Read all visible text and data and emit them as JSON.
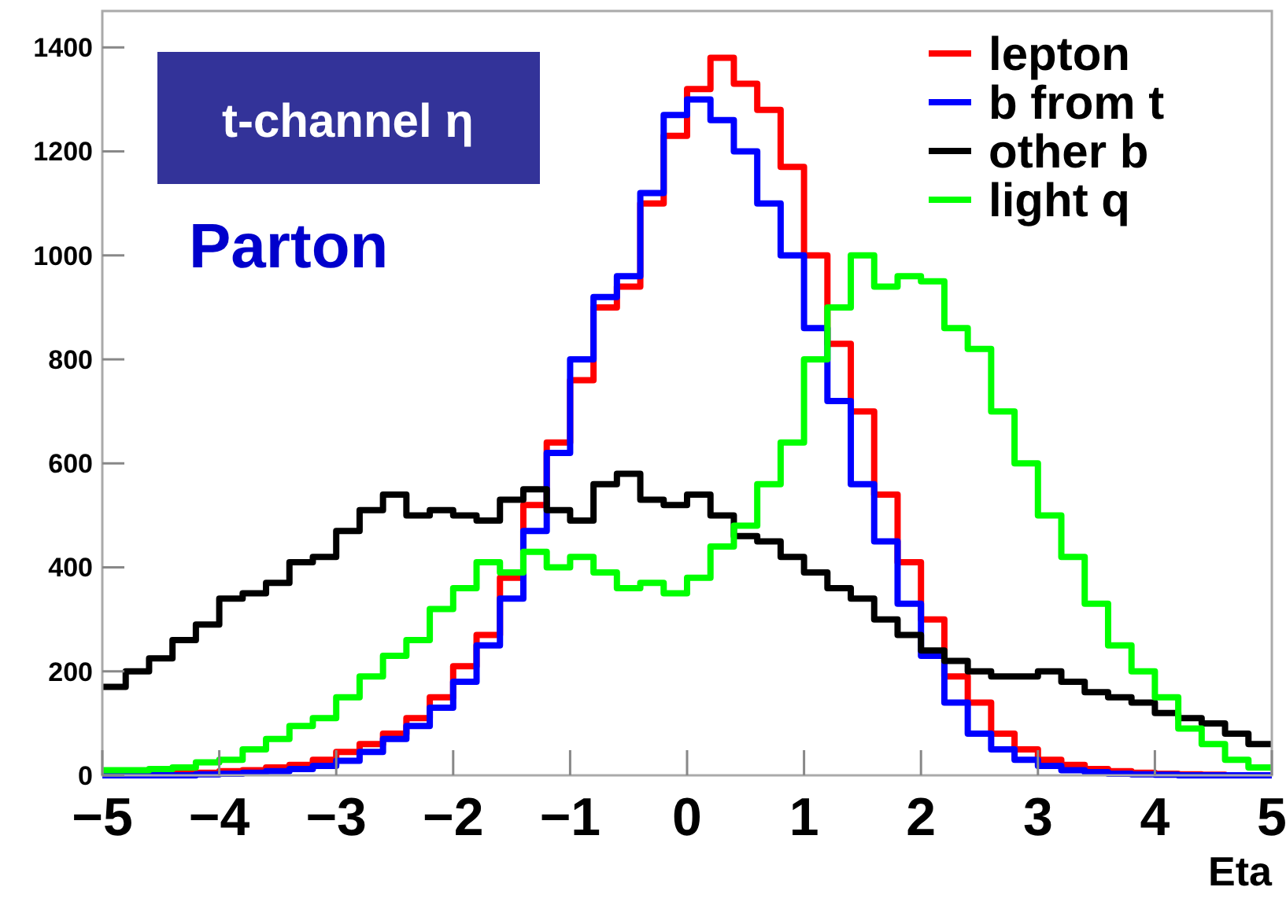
{
  "chart_data": {
    "type": "histogram",
    "title": "t-channel η",
    "subtitle": "Parton",
    "xlabel": "Eta",
    "bins": [
      -5,
      -4.8,
      -4.6,
      -4.4,
      -4.2,
      -4,
      -3.8,
      -3.6,
      -3.4,
      -3.2,
      -3,
      -2.8,
      -2.6,
      -2.4,
      -2.2,
      -2,
      -1.8,
      -1.6,
      -1.4,
      -1.2,
      -1,
      -0.8,
      -0.6,
      -0.4,
      -0.2,
      0,
      0.2,
      0.4,
      0.6,
      0.8,
      1,
      1.2,
      1.4,
      1.6,
      1.8,
      2,
      2.2,
      2.4,
      2.6,
      2.8,
      3,
      3.2,
      3.4,
      3.6,
      3.8,
      4,
      4.2,
      4.4,
      4.6,
      4.8,
      5
    ],
    "series": [
      {
        "name": "lepton",
        "color": "#ff0000",
        "values": [
          0,
          0,
          2,
          3,
          5,
          8,
          10,
          15,
          20,
          30,
          45,
          60,
          80,
          110,
          150,
          210,
          270,
          380,
          520,
          640,
          760,
          900,
          940,
          1100,
          1230,
          1320,
          1380,
          1330,
          1280,
          1170,
          1000,
          830,
          700,
          540,
          410,
          300,
          190,
          140,
          80,
          50,
          30,
          20,
          12,
          8,
          5,
          3,
          2,
          1,
          0,
          0
        ]
      },
      {
        "name": "b from t",
        "color": "#0000ff",
        "values": [
          0,
          0,
          0,
          0,
          2,
          3,
          5,
          8,
          12,
          18,
          28,
          45,
          70,
          95,
          130,
          180,
          250,
          340,
          470,
          620,
          800,
          920,
          960,
          1120,
          1270,
          1300,
          1260,
          1200,
          1100,
          1000,
          860,
          720,
          560,
          450,
          330,
          230,
          140,
          80,
          50,
          30,
          18,
          10,
          6,
          3,
          2,
          1,
          0,
          0,
          0,
          0
        ]
      },
      {
        "name": "other b",
        "color": "#000000",
        "values": [
          170,
          200,
          225,
          260,
          290,
          340,
          350,
          370,
          410,
          420,
          470,
          510,
          540,
          500,
          510,
          500,
          490,
          530,
          550,
          510,
          490,
          560,
          580,
          530,
          520,
          540,
          500,
          460,
          450,
          420,
          390,
          360,
          340,
          300,
          270,
          240,
          220,
          200,
          190,
          190,
          200,
          180,
          160,
          150,
          140,
          120,
          110,
          100,
          80,
          60
        ]
      },
      {
        "name": "light q",
        "color": "#00ff00",
        "values": [
          10,
          10,
          12,
          15,
          25,
          30,
          50,
          70,
          95,
          110,
          150,
          190,
          230,
          260,
          320,
          360,
          410,
          390,
          430,
          400,
          420,
          390,
          360,
          370,
          350,
          380,
          440,
          480,
          560,
          640,
          800,
          900,
          1000,
          940,
          960,
          950,
          860,
          820,
          700,
          600,
          500,
          420,
          330,
          250,
          200,
          150,
          90,
          60,
          30,
          15
        ]
      }
    ],
    "xlim": [
      -5,
      5
    ],
    "ylim": [
      0,
      1470
    ],
    "xticks": [
      -5,
      -4,
      -3,
      -2,
      -1,
      0,
      1,
      2,
      3,
      4,
      5
    ],
    "yticks": [
      0,
      200,
      400,
      600,
      800,
      1000,
      1200,
      1400
    ],
    "legend": "top right",
    "grid": false
  }
}
